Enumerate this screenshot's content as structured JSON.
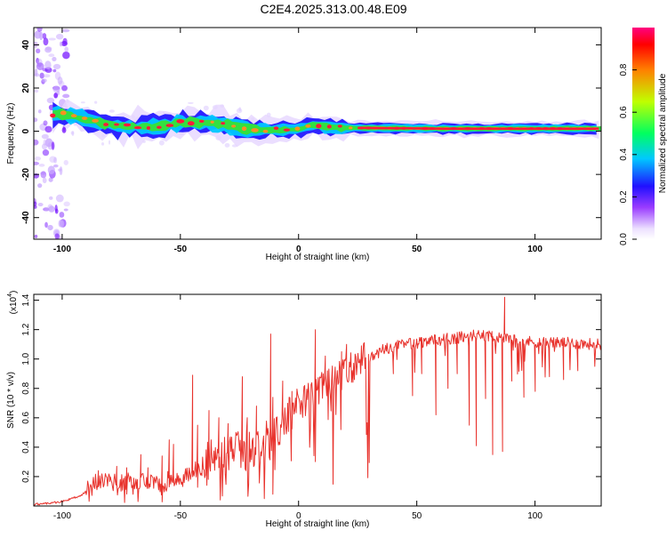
{
  "title": "C2E4.2025.313.00.48.E09",
  "colors": {
    "snr_line": "#e8322c",
    "axis": "#000000",
    "band_core": "#ff1a3a",
    "band_mid": "#33e040",
    "band_edge": "#1a10ff",
    "speckle": "#7a1cff"
  },
  "chart_data": [
    {
      "type": "heatmap",
      "title": "C2E4.2025.313.00.48.E09",
      "xlabel": "Height of straight line (km)",
      "ylabel": "Frequency (Hz)",
      "xlim": [
        -112,
        128
      ],
      "ylim": [
        -50,
        48
      ],
      "xticks": [
        -100,
        -50,
        0,
        50,
        100
      ],
      "yticks": [
        -40,
        -20,
        0,
        20,
        40
      ],
      "band_center_hz": [
        {
          "x": -102,
          "y": 8
        },
        {
          "x": -95,
          "y": 7
        },
        {
          "x": -88,
          "y": 5
        },
        {
          "x": -80,
          "y": 3
        },
        {
          "x": -70,
          "y": 2
        },
        {
          "x": -60,
          "y": 2
        },
        {
          "x": -50,
          "y": 4
        },
        {
          "x": -40,
          "y": 4
        },
        {
          "x": -30,
          "y": 3
        },
        {
          "x": -22,
          "y": 1
        },
        {
          "x": -10,
          "y": 0.5
        },
        {
          "x": 0,
          "y": 1
        },
        {
          "x": 5,
          "y": 3
        },
        {
          "x": 15,
          "y": 1.5
        },
        {
          "x": 30,
          "y": 1.5
        },
        {
          "x": 60,
          "y": 1.2
        },
        {
          "x": 90,
          "y": 1.2
        },
        {
          "x": 128,
          "y": 1.2
        }
      ],
      "colorbar": {
        "label": "Normalized spectral amplitude",
        "range": [
          0,
          1
        ],
        "ticks": [
          "0.0",
          "0.2",
          "0.4",
          "0.6",
          "0.8"
        ],
        "tick_values": [
          0.0,
          0.2,
          0.4,
          0.6,
          0.8
        ],
        "stops": [
          {
            "v": 0.0,
            "c": "#ffffff"
          },
          {
            "v": 0.05,
            "c": "#ece0ff"
          },
          {
            "v": 0.15,
            "c": "#9a3cff"
          },
          {
            "v": 0.25,
            "c": "#2010ff"
          },
          {
            "v": 0.38,
            "c": "#00c8ff"
          },
          {
            "v": 0.5,
            "c": "#00ff60"
          },
          {
            "v": 0.65,
            "c": "#c0ff00"
          },
          {
            "v": 0.8,
            "c": "#ff8000"
          },
          {
            "v": 0.92,
            "c": "#ff0000"
          },
          {
            "v": 1.0,
            "c": "#ff0080"
          }
        ]
      }
    },
    {
      "type": "line",
      "xlabel": "Height of straight line (km)",
      "ylabel": "SNR (10 * v/v)",
      "scale_label": "(x10",
      "scale_exp": "4",
      "scale_close": ")",
      "xlim": [
        -112,
        128
      ],
      "ylim": [
        0.0,
        1.44
      ],
      "xticks": [
        -100,
        -50,
        0,
        50,
        100
      ],
      "yticks": [
        0.2,
        0.4,
        0.6,
        0.8,
        1.0,
        1.2,
        1.4
      ],
      "ytick_labels": [
        "0.2",
        "0.4",
        "0.6",
        "0.8",
        "1.0",
        "1.2",
        "1.4"
      ],
      "envelope": [
        {
          "x": -112,
          "y": 0.01
        },
        {
          "x": -100,
          "y": 0.03
        },
        {
          "x": -92,
          "y": 0.07
        },
        {
          "x": -86,
          "y": 0.15
        },
        {
          "x": -80,
          "y": 0.14
        },
        {
          "x": -70,
          "y": 0.15
        },
        {
          "x": -60,
          "y": 0.14
        },
        {
          "x": -50,
          "y": 0.18
        },
        {
          "x": -40,
          "y": 0.26
        },
        {
          "x": -30,
          "y": 0.32
        },
        {
          "x": -20,
          "y": 0.34
        },
        {
          "x": -12,
          "y": 0.42
        },
        {
          "x": -5,
          "y": 0.55
        },
        {
          "x": 2,
          "y": 0.68
        },
        {
          "x": 8,
          "y": 0.75
        },
        {
          "x": 15,
          "y": 0.82
        },
        {
          "x": 22,
          "y": 0.9
        },
        {
          "x": 28,
          "y": 0.98
        },
        {
          "x": 35,
          "y": 1.06
        },
        {
          "x": 45,
          "y": 1.1
        },
        {
          "x": 55,
          "y": 1.12
        },
        {
          "x": 65,
          "y": 1.14
        },
        {
          "x": 75,
          "y": 1.16
        },
        {
          "x": 85,
          "y": 1.15
        },
        {
          "x": 95,
          "y": 1.12
        },
        {
          "x": 110,
          "y": 1.11
        },
        {
          "x": 128,
          "y": 1.1
        }
      ],
      "spikes": [
        {
          "x": -85,
          "y": 0.24
        },
        {
          "x": -80,
          "y": 0.2
        },
        {
          "x": -77,
          "y": 0.27
        },
        {
          "x": -73,
          "y": 0.26
        },
        {
          "x": -67,
          "y": 0.35
        },
        {
          "x": -64,
          "y": 0.26
        },
        {
          "x": -58,
          "y": 0.34
        },
        {
          "x": -55,
          "y": 0.45
        },
        {
          "x": -53,
          "y": 0.42
        },
        {
          "x": -45,
          "y": 0.89
        },
        {
          "x": -43,
          "y": 0.55
        },
        {
          "x": -38,
          "y": 0.65
        },
        {
          "x": -34,
          "y": 0.6
        },
        {
          "x": -30,
          "y": 0.56
        },
        {
          "x": -24,
          "y": 0.88
        },
        {
          "x": -22,
          "y": 0.6
        },
        {
          "x": -18,
          "y": 0.68
        },
        {
          "x": -12,
          "y": 1.17
        },
        {
          "x": -11,
          "y": 0.74
        },
        {
          "x": -7,
          "y": 0.85
        },
        {
          "x": -3,
          "y": 0.78
        },
        {
          "x": 7,
          "y": 1.2
        },
        {
          "x": 11,
          "y": 1.02
        },
        {
          "x": 18,
          "y": 1.05
        },
        {
          "x": 20,
          "y": 1.1
        },
        {
          "x": 87,
          "y": 1.42
        }
      ],
      "dips": [
        {
          "x": 40,
          "y": 0.9
        },
        {
          "x": 48,
          "y": 0.75
        },
        {
          "x": 52,
          "y": 0.9
        },
        {
          "x": 58,
          "y": 0.62
        },
        {
          "x": 63,
          "y": 0.8
        },
        {
          "x": 67,
          "y": 0.9
        },
        {
          "x": 72,
          "y": 0.55
        },
        {
          "x": 75,
          "y": 0.41
        },
        {
          "x": 79,
          "y": 0.73
        },
        {
          "x": 82,
          "y": 0.35
        },
        {
          "x": 86,
          "y": 0.37
        },
        {
          "x": 90,
          "y": 0.85
        },
        {
          "x": 95,
          "y": 0.74
        },
        {
          "x": 100,
          "y": 0.78
        },
        {
          "x": 106,
          "y": 0.88
        },
        {
          "x": 112,
          "y": 0.86
        },
        {
          "x": 118,
          "y": 0.92
        },
        {
          "x": 125,
          "y": 0.95
        }
      ]
    }
  ]
}
